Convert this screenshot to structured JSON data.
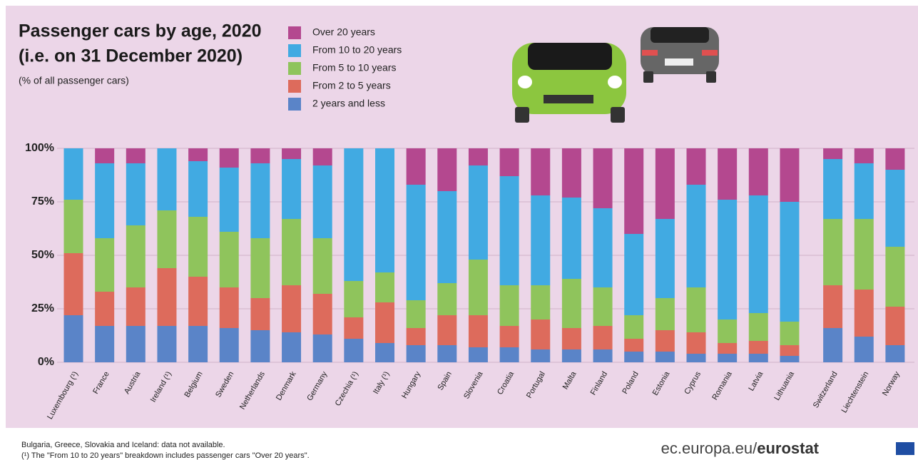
{
  "chart_data": {
    "type": "stacked-bar",
    "title_lines": [
      "Passenger cars by age, 2020",
      "(i.e. on 31 December 2020)"
    ],
    "subtitle": "(% of all passenger cars)",
    "categories": [
      "Luxembourg (¹)",
      "France",
      "Austria",
      "Ireland (¹)",
      "Belgium",
      "Sweden",
      "Netherlands",
      "Denmark",
      "Germany",
      "Czechia (¹)",
      "Italy (¹)",
      "Hungary",
      "Spain",
      "Slovenia",
      "Croatia",
      "Portugal",
      "Malta",
      "Finland",
      "Poland",
      "Estonia",
      "Cyprus",
      "Romania",
      "Latvia",
      "Lithuania",
      "Switzerland",
      "Liechtenstein",
      "Norway"
    ],
    "series": [
      {
        "name": "2 years and less",
        "color": "#5a84c8",
        "values": [
          22,
          17,
          17,
          17,
          17,
          16,
          15,
          14,
          13,
          11,
          9,
          8,
          8,
          7,
          7,
          6,
          6,
          6,
          5,
          5,
          4,
          4,
          4,
          3,
          16,
          12,
          8
        ]
      },
      {
        "name": "From 2 to 5 years",
        "color": "#dd6b5c",
        "values": [
          29,
          16,
          18,
          27,
          23,
          19,
          15,
          22,
          19,
          10,
          19,
          8,
          14,
          15,
          10,
          14,
          10,
          11,
          6,
          10,
          10,
          5,
          6,
          5,
          20,
          22,
          18
        ]
      },
      {
        "name": "From 5 to 10 years",
        "color": "#8fc45c",
        "values": [
          25,
          25,
          29,
          27,
          28,
          26,
          28,
          31,
          26,
          17,
          14,
          13,
          15,
          26,
          19,
          16,
          23,
          18,
          11,
          15,
          21,
          11,
          13,
          11,
          31,
          33,
          28
        ]
      },
      {
        "name": "From 10 to 20 years",
        "color": "#41aae2",
        "values": [
          24,
          35,
          29,
          29,
          26,
          30,
          35,
          28,
          34,
          62,
          58,
          54,
          43,
          44,
          51,
          42,
          38,
          37,
          38,
          37,
          48,
          56,
          55,
          56,
          28,
          26,
          36
        ]
      },
      {
        "name": "Over 20 years",
        "color": "#b4488f",
        "values": [
          0,
          7,
          7,
          0,
          6,
          9,
          7,
          5,
          8,
          0,
          0,
          17,
          20,
          8,
          13,
          22,
          23,
          28,
          40,
          33,
          17,
          24,
          22,
          25,
          5,
          7,
          10
        ]
      }
    ],
    "ylim": [
      0,
      100
    ],
    "yticks": [
      {
        "value": 0,
        "label": "0%"
      },
      {
        "value": 25,
        "label": "25%"
      },
      {
        "value": 50,
        "label": "50%"
      },
      {
        "value": 75,
        "label": "75%"
      },
      {
        "value": 100,
        "label": "100%"
      }
    ],
    "grid": true,
    "footnotes": [
      "Bulgaria, Greece, Slovakia and Iceland: data not available.",
      "(¹) The \"From 10 to 20 years\" breakdown includes passenger cars \"Over 20 years\"."
    ],
    "source": [
      "ec.europa.eu/",
      "eurostat"
    ]
  }
}
